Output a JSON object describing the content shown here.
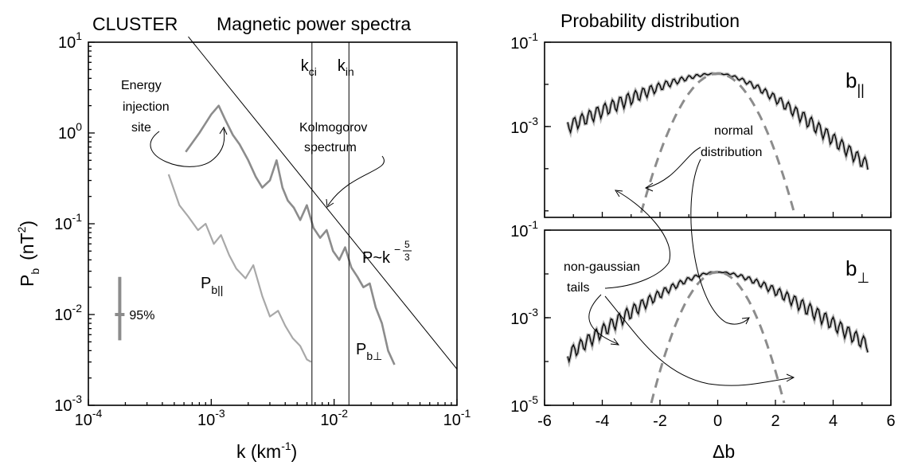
{
  "header": {
    "left_title_1": "CLUSTER",
    "left_title_2": "Magnetic power spectra",
    "right_title": "Probability distribution"
  },
  "colors": {
    "gray_dark": "#8c8c8c",
    "gray_light": "#a8a8a8",
    "black": "#000000"
  },
  "chart_data": [
    {
      "type": "line",
      "title": "Magnetic power spectra",
      "xlabel": "k (km",
      "xlabel_sup": "-1",
      "xlabel_close": ")",
      "ylabel": "P",
      "ylabel_sub": "b",
      "ylabel_unit": "(nT",
      "ylabel_unit_sup": "2",
      "ylabel_unit_close": ")",
      "xscale": "log",
      "yscale": "log",
      "xlim": [
        0.0001,
        0.1
      ],
      "ylim": [
        0.001,
        10
      ],
      "x_ticks": [
        {
          "base": "10",
          "exp": "-4",
          "value": 0.0001
        },
        {
          "base": "10",
          "exp": "-3",
          "value": 0.001
        },
        {
          "base": "10",
          "exp": "-2",
          "value": 0.01
        },
        {
          "base": "10",
          "exp": "-1",
          "value": 0.1
        }
      ],
      "y_ticks": [
        {
          "base": "10",
          "exp": "-3",
          "value": 0.001
        },
        {
          "base": "10",
          "exp": "-2",
          "value": 0.01
        },
        {
          "base": "10",
          "exp": "-1",
          "value": 0.1
        },
        {
          "base": "10",
          "exp": "0",
          "value": 1
        },
        {
          "base": "10",
          "exp": "1",
          "value": 10
        }
      ],
      "series": [
        {
          "name": "P b⊥",
          "label_main": "P",
          "label_sub": "b⊥",
          "color": "#8c8c8c",
          "x": [
            0.00062,
            0.0008,
            0.001,
            0.00115,
            0.0013,
            0.0015,
            0.0017,
            0.002,
            0.0023,
            0.0026,
            0.003,
            0.0034,
            0.0038,
            0.0042,
            0.0047,
            0.0053,
            0.006,
            0.0068,
            0.0077,
            0.0087,
            0.0098,
            0.011,
            0.0123,
            0.0138,
            0.0155,
            0.0173,
            0.0195,
            0.0218,
            0.0245,
            0.0275,
            0.031
          ],
          "y": [
            0.62,
            1.0,
            1.6,
            2.0,
            1.4,
            0.95,
            0.75,
            0.5,
            0.33,
            0.25,
            0.3,
            0.5,
            0.25,
            0.18,
            0.15,
            0.11,
            0.16,
            0.09,
            0.07,
            0.085,
            0.05,
            0.04,
            0.055,
            0.033,
            0.026,
            0.02,
            0.022,
            0.012,
            0.008,
            0.004,
            0.0028
          ]
        },
        {
          "name": "P b||",
          "label_main": "P",
          "label_sub": "b||",
          "color": "#a8a8a8",
          "x": [
            0.00045,
            0.00055,
            0.00065,
            0.00078,
            0.0009,
            0.00105,
            0.0012,
            0.0014,
            0.0016,
            0.0019,
            0.0022,
            0.0026,
            0.003,
            0.0035,
            0.004,
            0.0046,
            0.0053,
            0.006,
            0.0065
          ],
          "y": [
            0.35,
            0.16,
            0.12,
            0.085,
            0.1,
            0.06,
            0.075,
            0.045,
            0.032,
            0.025,
            0.035,
            0.016,
            0.0095,
            0.011,
            0.0075,
            0.0055,
            0.0045,
            0.0032,
            0.003
          ]
        },
        {
          "name": "Kolmogorov spectrum",
          "label_main": "P~k",
          "label_exp": "−",
          "label_frac_num": "5",
          "label_frac_den": "3",
          "color": "#000000",
          "x": [
            0.00065,
            0.1
          ],
          "y": [
            11.5,
            0.0025
          ]
        }
      ],
      "vlines": [
        {
          "label": "k",
          "label_sub": "ci",
          "x": 0.0066
        },
        {
          "label": "k",
          "label_sub": "in",
          "x": 0.0132
        }
      ],
      "error_bar": {
        "label": "95%",
        "x": 0.00018,
        "y": 0.01,
        "ylow": 0.0052,
        "yhigh": 0.026
      },
      "annotations": {
        "energy": [
          "Energy",
          "injection",
          "site"
        ],
        "kolmogorov": [
          "Kolmogorov",
          "spectrum"
        ]
      }
    },
    {
      "type": "line",
      "title": "Probability distribution",
      "xlabel": "Δb",
      "xlim": [
        -6,
        6
      ],
      "x_ticks": [
        -6,
        -4,
        -2,
        0,
        2,
        4,
        6
      ],
      "yscale": "log",
      "panels": [
        {
          "name": "b||",
          "label_main": "b",
          "label_sub": "||",
          "ylim": [
            7e-06,
            0.1
          ],
          "y_ticks": [
            {
              "base": "10",
              "exp": "-1",
              "value": 0.1
            },
            {
              "base": "10",
              "exp": "-3",
              "value": 0.001
            }
          ],
          "series": [
            {
              "name": "data",
              "color": "#000000",
              "center": 0.0,
              "peak": 0.018,
              "left_scale": 1.3,
              "right_scale": 0.85,
              "min": 1e-05
            },
            {
              "name": "normal distribution",
              "color": "#8c8c8c",
              "dashed": true,
              "center": 0.0,
              "peak": 0.018,
              "sigma": 0.68
            }
          ]
        },
        {
          "name": "b⊥",
          "label_main": "b",
          "label_sub": "⊥",
          "ylim": [
            1e-05,
            0.1
          ],
          "y_ticks": [
            {
              "base": "10",
              "exp": "-1",
              "value": 0.1
            },
            {
              "base": "10",
              "exp": "-3",
              "value": 0.001
            },
            {
              "base": "10",
              "exp": "-5",
              "value": 1e-05
            }
          ],
          "series": [
            {
              "name": "data",
              "color": "#000000",
              "center": 0.0,
              "peak": 0.011,
              "left_scale": 0.95,
              "right_scale": 1.05,
              "min": 1e-05
            },
            {
              "name": "normal distribution",
              "color": "#8c8c8c",
              "dashed": true,
              "center": 0.0,
              "peak": 0.011,
              "sigma": 0.62
            }
          ]
        }
      ],
      "annotations": {
        "normal": [
          "normal",
          "distribution"
        ],
        "tails": [
          "non-gaussian",
          "tails"
        ]
      }
    }
  ]
}
